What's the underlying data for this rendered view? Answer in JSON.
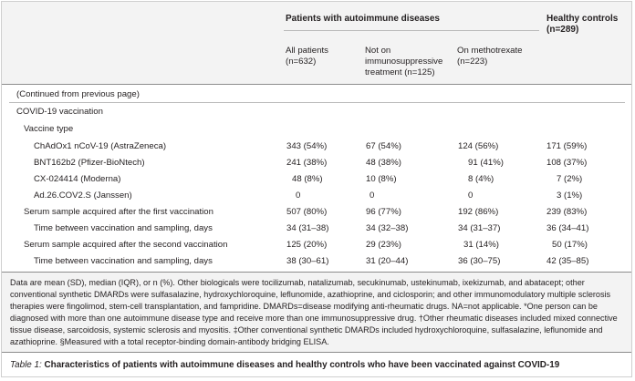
{
  "header": {
    "group_autoimmune": "Patients with autoimmune diseases",
    "group_healthy_line1": "Healthy controls",
    "group_healthy_line2": "(n=289)",
    "col_all_line1": "All patients",
    "col_all_line2": "(n=632)",
    "col_notimmuno_line1": "Not on",
    "col_notimmuno_line2": "immunosuppressive",
    "col_notimmuno_line3": "treatment (n=125)",
    "col_mtx_line1": "On methotrexate",
    "col_mtx_line2": "(n=223)"
  },
  "continued": "(Continued from previous page)",
  "section": "COVID-19 vaccination",
  "subsection": "Vaccine type",
  "rows": [
    {
      "label": "ChAdOx1 nCoV-19 (AstraZeneca)",
      "all": "343 (54%)",
      "notimmuno": "67 (54%)",
      "mtx": "124 (56%)",
      "healthy": "171 (59%)"
    },
    {
      "label": "BNT162b2 (Pfizer-BioNtech)",
      "all": "241 (38%)",
      "notimmuno": "48 (38%)",
      "mtx": "91 (41%)",
      "healthy": "108 (37%)"
    },
    {
      "label": "CX-024414 (Moderna)",
      "all": "48 (8%)",
      "notimmuno": "10 (8%)",
      "mtx": "8 (4%)",
      "healthy": "7 (2%)"
    },
    {
      "label": "Ad.26.COV2.S (Janssen)",
      "all": "0",
      "notimmuno": "0",
      "mtx": "0",
      "healthy": "3 (1%)"
    },
    {
      "label": "Serum sample acquired after the first vaccination",
      "all": "507 (80%)",
      "notimmuno": "96 (77%)",
      "mtx": "192 (86%)",
      "healthy": "239 (83%)"
    },
    {
      "label": "Time between vaccination and sampling, days",
      "all": "34 (31–38)",
      "notimmuno": "34 (32–38)",
      "mtx": "34 (31–37)",
      "healthy": "36 (34–41)"
    },
    {
      "label": "Serum sample acquired after the second vaccination",
      "all": "125 (20%)",
      "notimmuno": "29 (23%)",
      "mtx": "31 (14%)",
      "healthy": "50 (17%)"
    },
    {
      "label": "Time between vaccination and sampling, days",
      "all": "38 (30–61)",
      "notimmuno": "31 (20–44)",
      "mtx": "36 (30–75)",
      "healthy": "42 (35–85)"
    }
  ],
  "footnote": "Data are mean (SD), median (IQR), or n (%). Other biologicals were tocilizumab, natalizumab, secukinumab, ustekinumab, ixekizumab, and abatacept; other conventional synthetic DMARDs were sulfasalazine, hydroxychloroquine, leflunomide, azathioprine, and ciclosporin; and other immunomodulatory multiple sclerosis therapies were fingolimod, stem-cell transplantation, and fampridine. DMARDs=disease modifying anti-rheumatic drugs. NA=not applicable. *One person can be diagnosed with more than one autoimmune disease type and receive more than one immunosuppressive drug. †Other rheumatic diseases included mixed connective tissue disease, sarcoidosis, systemic sclerosis and myositis. ‡Other conventional synthetic DMARDs included hydroxychloroquine, sulfasalazine, leflunomide and azathioprine. §Measured with a total receptor-binding domain-antibody bridging ELISA.",
  "caption": {
    "label": "Table 1:",
    "text": " Characteristics of patients with autoimmune diseases and healthy controls who have been vaccinated against COVID-19"
  }
}
